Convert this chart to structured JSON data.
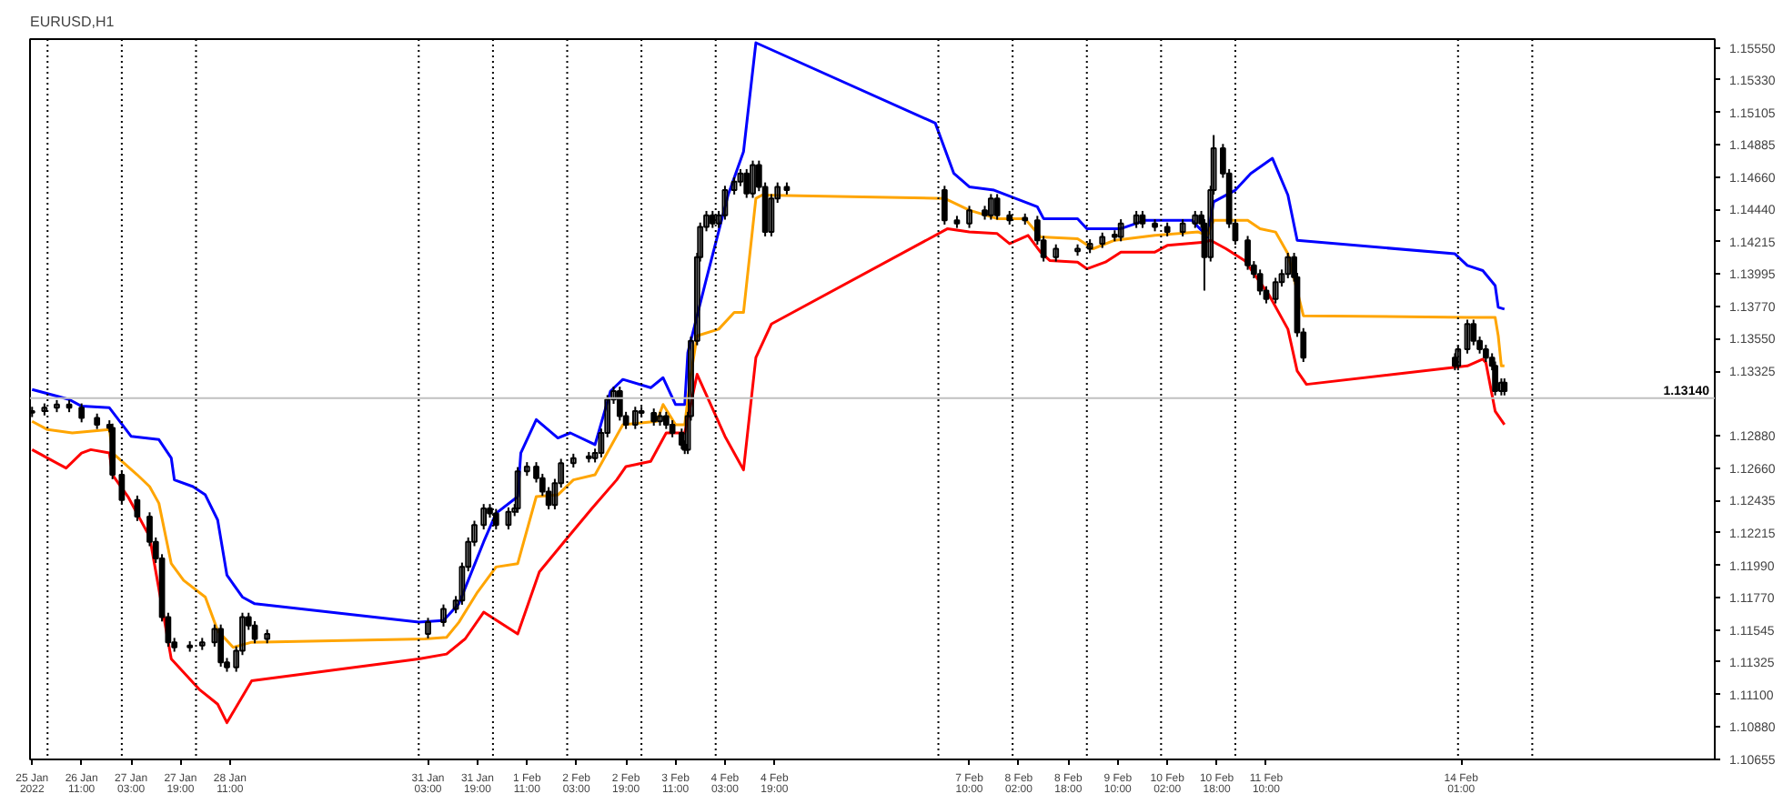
{
  "chart_data": {
    "type": "candlestick",
    "title": "EURUSD,H1",
    "color": "#000000",
    "x": [
      "2022-01-25T19:00",
      "2022-01-25T23:00",
      "2022-01-26T03:00",
      "2022-01-26T07:00",
      "2022-01-26T11:00",
      "2022-01-26T16:00",
      "2022-01-26T20:00",
      "2022-01-26T21:00",
      "2022-01-27T00:00",
      "2022-01-27T05:00",
      "2022-01-27T09:00",
      "2022-01-27T11:00",
      "2022-01-27T13:00",
      "2022-01-27T15:00",
      "2022-01-27T17:00",
      "2022-01-27T22:00",
      "2022-01-28T02:00",
      "2022-01-28T06:00",
      "2022-01-28T08:00",
      "2022-01-28T10:00",
      "2022-01-28T13:00",
      "2022-01-28T15:00",
      "2022-01-28T17:00",
      "2022-01-28T19:00",
      "2022-01-28T23:00",
      "2022-01-31T03:00",
      "2022-01-31T08:00",
      "2022-01-31T12:00",
      "2022-01-31T14:00",
      "2022-01-31T16:00",
      "2022-01-31T18:00",
      "2022-01-31T21:00",
      "2022-01-31T23:00",
      "2022-02-01T01:00",
      "2022-02-01T05:00",
      "2022-02-01T07:00",
      "2022-02-01T08:00",
      "2022-02-01T11:00",
      "2022-02-01T14:00",
      "2022-02-01T16:00",
      "2022-02-01T18:00",
      "2022-02-01T20:00",
      "2022-02-01T22:00",
      "2022-02-02T02:00",
      "2022-02-02T07:00",
      "2022-02-02T09:00",
      "2022-02-02T11:00",
      "2022-02-02T13:00",
      "2022-02-02T15:00",
      "2022-02-02T17:00",
      "2022-02-02T19:00",
      "2022-02-02T22:00",
      "2022-02-03T00:00",
      "2022-02-03T04:00",
      "2022-02-03T06:00",
      "2022-02-03T08:00",
      "2022-02-03T10:00",
      "2022-02-03T13:00",
      "2022-02-03T14:00",
      "2022-02-03T15:00",
      "2022-02-03T16:00",
      "2022-02-03T18:00",
      "2022-02-03T19:00",
      "2022-02-03T21:00",
      "2022-02-03T23:00",
      "2022-02-04T01:00",
      "2022-02-04T03:00",
      "2022-02-04T06:00",
      "2022-02-04T08:00",
      "2022-02-04T10:00",
      "2022-02-04T12:00",
      "2022-02-04T14:00",
      "2022-02-04T16:00",
      "2022-02-04T18:00",
      "2022-02-04T20:00",
      "2022-02-04T23:00",
      "2022-02-07T02:00",
      "2022-02-07T06:00",
      "2022-02-07T10:00",
      "2022-02-07T15:00",
      "2022-02-07T17:00",
      "2022-02-07T19:00",
      "2022-02-07T23:00",
      "2022-02-08T04:00",
      "2022-02-08T08:00",
      "2022-02-08T10:00",
      "2022-02-08T14:00",
      "2022-02-08T21:00",
      "2022-02-09T01:00",
      "2022-02-09T05:00",
      "2022-02-09T09:00",
      "2022-02-09T11:00",
      "2022-02-09T16:00",
      "2022-02-09T18:00",
      "2022-02-09T22:00",
      "2022-02-10T02:00",
      "2022-02-10T07:00",
      "2022-02-10T11:00",
      "2022-02-10T13:00",
      "2022-02-10T14:00",
      "2022-02-10T16:00",
      "2022-02-10T17:00",
      "2022-02-10T20:00",
      "2022-02-10T22:00",
      "2022-02-11T00:00",
      "2022-02-11T04:00",
      "2022-02-11T06:00",
      "2022-02-11T08:00",
      "2022-02-11T10:00",
      "2022-02-11T13:00",
      "2022-02-11T15:00",
      "2022-02-11T17:00",
      "2022-02-11T19:00",
      "2022-02-11T20:00",
      "2022-02-11T22:00",
      "2022-02-13T23:00",
      "2022-02-14T00:00",
      "2022-02-14T03:00",
      "2022-02-14T05:00",
      "2022-02-14T07:00",
      "2022-02-14T09:00",
      "2022-02-14T11:00",
      "2022-02-14T12:00",
      "2022-02-14T14:00",
      "2022-02-14T15:00"
    ],
    "ohlc": [
      [
        1.1304,
        1.13081,
        1.1301,
        1.13051
      ],
      [
        1.13051,
        1.13104,
        1.13021,
        1.13074
      ],
      [
        1.13074,
        1.13127,
        1.13044,
        1.13097
      ],
      [
        1.13097,
        1.13127,
        1.13044,
        1.13074
      ],
      [
        1.13074,
        1.13104,
        1.12974,
        1.13004
      ],
      [
        1.13004,
        1.13034,
        1.12928,
        1.12958
      ],
      [
        1.12958,
        1.12988,
        1.12905,
        1.12935
      ],
      [
        1.12935,
        1.12965,
        1.12583,
        1.12613
      ],
      [
        1.12613,
        1.12643,
        1.1241,
        1.1244
      ],
      [
        1.1244,
        1.1247,
        1.12295,
        1.12325
      ],
      [
        1.12325,
        1.12355,
        1.12122,
        1.12152
      ],
      [
        1.12152,
        1.12182,
        1.12007,
        1.12037
      ],
      [
        1.12037,
        1.12067,
        1.11604,
        1.11634
      ],
      [
        1.11634,
        1.11664,
        1.11431,
        1.11461
      ],
      [
        1.11461,
        1.11491,
        1.11396,
        1.11426
      ],
      [
        1.11426,
        1.11468,
        1.11396,
        1.11438
      ],
      [
        1.11438,
        1.11491,
        1.11408,
        1.11461
      ],
      [
        1.11461,
        1.11583,
        1.11431,
        1.11553
      ],
      [
        1.11553,
        1.11583,
        1.11293,
        1.11323
      ],
      [
        1.11323,
        1.11353,
        1.11258,
        1.11288
      ],
      [
        1.11288,
        1.11433,
        1.11258,
        1.11403
      ],
      [
        1.11403,
        1.11664,
        1.11373,
        1.11634
      ],
      [
        1.11634,
        1.11664,
        1.11546,
        1.11576
      ],
      [
        1.11576,
        1.11606,
        1.11454,
        1.11484
      ],
      [
        1.11484,
        1.11548,
        1.11454,
        1.11518
      ],
      [
        1.11518,
        1.11629,
        1.11488,
        1.11599
      ],
      [
        1.11599,
        1.11721,
        1.11569,
        1.11691
      ],
      [
        1.11691,
        1.11779,
        1.11661,
        1.11749
      ],
      [
        1.11749,
        1.12009,
        1.11719,
        1.11979
      ],
      [
        1.11979,
        1.12182,
        1.11949,
        1.12152
      ],
      [
        1.12152,
        1.12297,
        1.12122,
        1.12267
      ],
      [
        1.12267,
        1.12412,
        1.12237,
        1.12382
      ],
      [
        1.12382,
        1.12412,
        1.12318,
        1.12348
      ],
      [
        1.12348,
        1.12378,
        1.12237,
        1.12267
      ],
      [
        1.12267,
        1.12389,
        1.12237,
        1.12359
      ],
      [
        1.12359,
        1.12412,
        1.12329,
        1.12382
      ],
      [
        1.12382,
        1.12666,
        1.12352,
        1.12636
      ],
      [
        1.12636,
        1.127,
        1.12606,
        1.1267
      ],
      [
        1.1267,
        1.127,
        1.1256,
        1.1259
      ],
      [
        1.1259,
        1.1262,
        1.12468,
        1.12498
      ],
      [
        1.12498,
        1.12528,
        1.12375,
        1.12405
      ],
      [
        1.12405,
        1.12585,
        1.12375,
        1.12555
      ],
      [
        1.12555,
        1.12723,
        1.12525,
        1.12693
      ],
      [
        1.12693,
        1.12758,
        1.12663,
        1.12728
      ],
      [
        1.1274,
        1.1277,
        1.12698,
        1.12728
      ],
      [
        1.12728,
        1.12793,
        1.12698,
        1.12763
      ],
      [
        1.12763,
        1.12931,
        1.12733,
        1.12901
      ],
      [
        1.12901,
        1.13161,
        1.12871,
        1.13131
      ],
      [
        1.13131,
        1.13219,
        1.13101,
        1.13189
      ],
      [
        1.13189,
        1.13219,
        1.12986,
        1.13016
      ],
      [
        1.13016,
        1.13046,
        1.12928,
        1.12958
      ],
      [
        1.12958,
        1.13081,
        1.12928,
        1.13051
      ],
      [
        1.13051,
        1.13081,
        1.13009,
        1.13039
      ],
      [
        1.13039,
        1.13069,
        1.12951,
        1.12981
      ],
      [
        1.12981,
        1.13046,
        1.12951,
        1.13016
      ],
      [
        1.13016,
        1.13046,
        1.12928,
        1.12958
      ],
      [
        1.12958,
        1.12988,
        1.12871,
        1.12901
      ],
      [
        1.12901,
        1.12931,
        1.1279,
        1.1282
      ],
      [
        1.1282,
        1.1285,
        1.12756,
        1.12786
      ],
      [
        1.12786,
        1.13046,
        1.12756,
        1.13016
      ],
      [
        1.13016,
        1.13564,
        1.12986,
        1.13534
      ],
      [
        1.13534,
        1.1414,
        1.13504,
        1.1411
      ],
      [
        1.1411,
        1.14348,
        1.1408,
        1.14318
      ],
      [
        1.14318,
        1.14428,
        1.14288,
        1.14398
      ],
      [
        1.14398,
        1.14428,
        1.14311,
        1.14341
      ],
      [
        1.14341,
        1.14428,
        1.14311,
        1.14398
      ],
      [
        1.14398,
        1.14601,
        1.14368,
        1.14571
      ],
      [
        1.14571,
        1.14659,
        1.14541,
        1.14629
      ],
      [
        1.14629,
        1.14716,
        1.14599,
        1.14686
      ],
      [
        1.14686,
        1.14716,
        1.14518,
        1.14548
      ],
      [
        1.14548,
        1.14774,
        1.14518,
        1.14744
      ],
      [
        1.14744,
        1.14774,
        1.14564,
        1.14594
      ],
      [
        1.14594,
        1.14624,
        1.14253,
        1.14283
      ],
      [
        1.14283,
        1.14544,
        1.14253,
        1.14514
      ],
      [
        1.14514,
        1.14624,
        1.14484,
        1.14594
      ],
      [
        1.14594,
        1.14624,
        1.14541,
        1.14571
      ],
      [
        1.14571,
        1.14601,
        1.14334,
        1.14364
      ],
      [
        1.14364,
        1.14394,
        1.14311,
        1.14341
      ],
      [
        1.14341,
        1.14463,
        1.14311,
        1.14433
      ],
      [
        1.14433,
        1.14463,
        1.14368,
        1.14398
      ],
      [
        1.14398,
        1.14544,
        1.14368,
        1.14514
      ],
      [
        1.14514,
        1.14544,
        1.14368,
        1.14398
      ],
      [
        1.14398,
        1.14428,
        1.14334,
        1.14364
      ],
      [
        1.1438,
        1.1441,
        1.14334,
        1.14364
      ],
      [
        1.14364,
        1.14394,
        1.14196,
        1.14226
      ],
      [
        1.14226,
        1.14256,
        1.1408,
        1.1411
      ],
      [
        1.1411,
        1.14198,
        1.1408,
        1.14168
      ],
      [
        1.1415,
        1.14198,
        1.1412,
        1.14168
      ],
      [
        1.14168,
        1.14233,
        1.14138,
        1.14203
      ],
      [
        1.14203,
        1.14279,
        1.14173,
        1.14249
      ],
      [
        1.14265,
        1.14295,
        1.14219,
        1.14249
      ],
      [
        1.14249,
        1.14371,
        1.14219,
        1.14341
      ],
      [
        1.14341,
        1.14428,
        1.14311,
        1.14398
      ],
      [
        1.14398,
        1.14428,
        1.14311,
        1.14341
      ],
      [
        1.14341,
        1.14371,
        1.14288,
        1.14318
      ],
      [
        1.14318,
        1.14348,
        1.14253,
        1.14283
      ],
      [
        1.14283,
        1.14371,
        1.14253,
        1.14341
      ],
      [
        1.14341,
        1.14428,
        1.14311,
        1.14398
      ],
      [
        1.14398,
        1.14428,
        1.14311,
        1.14341
      ],
      [
        1.14341,
        1.14371,
        1.1388,
        1.1411
      ],
      [
        1.1411,
        1.14601,
        1.1408,
        1.14571
      ],
      [
        1.14571,
        1.1495,
        1.14541,
        1.14859
      ],
      [
        1.14859,
        1.14889,
        1.14656,
        1.14686
      ],
      [
        1.14686,
        1.14716,
        1.14311,
        1.14341
      ],
      [
        1.14341,
        1.14371,
        1.14196,
        1.14226
      ],
      [
        1.14226,
        1.14256,
        1.14023,
        1.14053
      ],
      [
        1.14053,
        1.14083,
        1.13965,
        1.13995
      ],
      [
        1.13995,
        1.14025,
        1.1385,
        1.1388
      ],
      [
        1.1388,
        1.1391,
        1.13792,
        1.13822
      ],
      [
        1.13822,
        1.13968,
        1.13792,
        1.13938
      ],
      [
        1.13938,
        1.14025,
        1.13908,
        1.13995
      ],
      [
        1.13995,
        1.1414,
        1.13965,
        1.1411
      ],
      [
        1.1411,
        1.1414,
        1.13942,
        1.13972
      ],
      [
        1.13972,
        1.14002,
        1.13562,
        1.13592
      ],
      [
        1.13592,
        1.13622,
        1.13389,
        1.13419
      ],
      [
        1.13419,
        1.13449,
        1.13332,
        1.13362
      ],
      [
        1.13362,
        1.13507,
        1.13332,
        1.13477
      ],
      [
        1.13477,
        1.1368,
        1.13447,
        1.1365
      ],
      [
        1.1365,
        1.1368,
        1.13504,
        1.13534
      ],
      [
        1.13534,
        1.13564,
        1.13447,
        1.13477
      ],
      [
        1.13477,
        1.13507,
        1.13389,
        1.13419
      ],
      [
        1.13419,
        1.13449,
        1.13332,
        1.13362
      ],
      [
        1.13362,
        1.13392,
        1.13159,
        1.13189
      ],
      [
        1.13189,
        1.13276,
        1.13159,
        1.13246
      ],
      [
        1.13246,
        1.13276,
        1.13159,
        1.13189
      ]
    ],
    "series": [
      {
        "type": "line",
        "color": "#0000ff",
        "x": [
          "2022-01-25T19:00",
          "2022-01-26T03:00",
          "2022-01-26T07:00",
          "2022-01-26T11:00",
          "2022-01-26T20:00",
          "2022-01-27T03:00",
          "2022-01-27T12:00",
          "2022-01-27T16:00",
          "2022-01-27T17:00",
          "2022-01-27T23:00",
          "2022-01-28T03:00",
          "2022-01-28T07:00",
          "2022-01-28T10:00",
          "2022-01-28T15:00",
          "2022-01-28T19:00",
          "2022-01-31T00:00",
          "2022-01-31T08:00",
          "2022-01-31T13:00",
          "2022-01-31T16:00",
          "2022-01-31T21:00",
          "2022-02-01T01:00",
          "2022-02-01T08:00",
          "2022-02-01T09:00",
          "2022-02-01T14:00",
          "2022-02-01T21:00",
          "2022-02-02T01:00",
          "2022-02-02T09:00",
          "2022-02-02T14:00",
          "2022-02-02T18:00",
          "2022-02-03T03:00",
          "2022-02-03T07:00",
          "2022-02-03T11:00",
          "2022-02-03T14:00",
          "2022-02-03T15:00",
          "2022-02-03T21:00",
          "2022-02-04T04:00",
          "2022-02-04T09:00",
          "2022-02-04T13:00",
          "2022-02-06T23:00",
          "2022-02-07T05:00",
          "2022-02-07T10:00",
          "2022-02-07T18:00",
          "2022-02-08T08:00",
          "2022-02-08T10:00",
          "2022-02-08T21:00",
          "2022-02-09T00:00",
          "2022-02-09T11:00",
          "2022-02-09T19:00",
          "2022-02-10T10:00",
          "2022-02-10T15:00",
          "2022-02-10T17:00",
          "2022-02-11T00:00",
          "2022-02-11T05:00",
          "2022-02-11T12:00",
          "2022-02-11T17:00",
          "2022-02-11T20:00",
          "2022-02-13T23:00",
          "2022-02-14T03:00",
          "2022-02-14T08:00",
          "2022-02-14T12:00",
          "2022-02-14T13:00",
          "2022-02-14T15:00"
        ],
        "values": [
          1.132,
          1.13154,
          1.13131,
          1.13085,
          1.13074,
          1.12878,
          1.12855,
          1.12728,
          1.12578,
          1.12532,
          1.12475,
          1.12302,
          1.11922,
          1.11772,
          1.11726,
          1.11599,
          1.11611,
          1.11726,
          1.11887,
          1.12152,
          1.12348,
          1.12463,
          1.12763,
          1.12993,
          1.12866,
          1.12901,
          1.1282,
          1.13189,
          1.13269,
          1.13212,
          1.13281,
          1.13097,
          1.13097,
          1.13454,
          1.13961,
          1.14537,
          1.14836,
          1.15585,
          1.15032,
          1.14686,
          1.14594,
          1.14571,
          1.14456,
          1.14375,
          1.14375,
          1.14306,
          1.14306,
          1.14364,
          1.14364,
          1.14249,
          1.14491,
          1.14571,
          1.14686,
          1.1479,
          1.14537,
          1.14226,
          1.14133,
          1.14053,
          1.14018,
          1.13915,
          1.13765,
          1.13753
        ]
      },
      {
        "type": "line",
        "color": "#ffa500",
        "x": [
          "2022-01-25T19:00",
          "2022-01-26T00:00",
          "2022-01-26T08:00",
          "2022-01-26T20:00",
          "2022-01-26T21:00",
          "2022-01-27T05:00",
          "2022-01-27T09:00",
          "2022-01-27T12:00",
          "2022-01-27T16:00",
          "2022-01-27T20:00",
          "2022-01-28T03:00",
          "2022-01-28T07:00",
          "2022-01-28T12:00",
          "2022-01-28T18:00",
          "2022-01-31T02:00",
          "2022-01-31T09:00",
          "2022-01-31T13:00",
          "2022-01-31T19:00",
          "2022-02-01T01:00",
          "2022-02-01T08:00",
          "2022-02-01T14:00",
          "2022-02-01T21:00",
          "2022-02-02T02:00",
          "2022-02-02T09:00",
          "2022-02-02T15:00",
          "2022-02-02T18:00",
          "2022-02-03T05:00",
          "2022-02-03T07:00",
          "2022-02-03T11:00",
          "2022-02-03T14:00",
          "2022-02-03T16:00",
          "2022-02-03T18:00",
          "2022-02-04T01:00",
          "2022-02-04T06:00",
          "2022-02-04T09:00",
          "2022-02-04T13:00",
          "2022-02-04T15:00",
          "2022-02-07T02:00",
          "2022-02-07T10:00",
          "2022-02-07T19:00",
          "2022-02-08T04:00",
          "2022-02-08T09:00",
          "2022-02-08T21:00",
          "2022-02-09T02:00",
          "2022-02-09T09:00",
          "2022-02-09T22:00",
          "2022-02-10T12:00",
          "2022-02-10T15:00",
          "2022-02-10T17:00",
          "2022-02-11T04:00",
          "2022-02-11T08:00",
          "2022-02-11T13:00",
          "2022-02-11T17:00",
          "2022-02-11T22:00",
          "2022-02-14T03:00",
          "2022-02-14T12:00",
          "2022-02-14T13:00",
          "2022-02-14T14:00",
          "2022-02-14T15:00"
        ],
        "values": [
          1.12981,
          1.12924,
          1.12901,
          1.12924,
          1.12763,
          1.12613,
          1.12532,
          1.12417,
          1.12002,
          1.11887,
          1.11772,
          1.11541,
          1.11426,
          1.11461,
          1.11484,
          1.11495,
          1.11599,
          1.11806,
          1.11979,
          1.12002,
          1.12463,
          1.12475,
          1.12578,
          1.12613,
          1.12843,
          1.12958,
          1.12981,
          1.13097,
          1.12958,
          1.12958,
          1.13304,
          1.13569,
          1.13615,
          1.1373,
          1.1373,
          1.14514,
          1.14537,
          1.14514,
          1.14433,
          1.14375,
          1.14375,
          1.14249,
          1.14237,
          1.14168,
          1.14226,
          1.1426,
          1.14283,
          1.1426,
          1.14364,
          1.14364,
          1.14306,
          1.14283,
          1.14133,
          1.13707,
          1.13696,
          1.13696,
          1.13569,
          1.13362,
          1.13362
        ]
      },
      {
        "type": "line",
        "color": "#ff0000",
        "x": [
          "2022-01-25T19:00",
          "2022-01-26T00:00",
          "2022-01-26T06:00",
          "2022-01-26T11:00",
          "2022-01-26T14:00",
          "2022-01-26T20:00",
          "2022-01-26T21:00",
          "2022-01-27T02:00",
          "2022-01-27T09:00",
          "2022-01-27T16:00",
          "2022-01-28T01:00",
          "2022-01-28T07:00",
          "2022-01-28T10:00",
          "2022-01-28T18:00",
          "2022-01-31T00:00",
          "2022-01-31T09:00",
          "2022-01-31T15:00",
          "2022-01-31T21:00",
          "2022-02-01T08:00",
          "2022-02-01T15:00",
          "2022-02-01T23:00",
          "2022-02-02T08:00",
          "2022-02-02T16:00",
          "2022-02-02T19:00",
          "2022-02-03T03:00",
          "2022-02-03T08:00",
          "2022-02-03T14:00",
          "2022-02-03T18:00",
          "2022-02-04T03:00",
          "2022-02-04T09:00",
          "2022-02-04T13:00",
          "2022-02-04T18:00",
          "2022-02-07T03:00",
          "2022-02-07T10:00",
          "2022-02-07T19:00",
          "2022-02-07T23:00",
          "2022-02-08T05:00",
          "2022-02-08T09:00",
          "2022-02-08T12:00",
          "2022-02-08T21:00",
          "2022-02-09T00:00",
          "2022-02-09T06:00",
          "2022-02-09T11:00",
          "2022-02-09T22:00",
          "2022-02-10T02:00",
          "2022-02-10T14:00",
          "2022-02-10T16:00",
          "2022-02-10T21:00",
          "2022-02-11T03:00",
          "2022-02-11T11:00",
          "2022-02-11T17:00",
          "2022-02-11T20:00",
          "2022-02-11T23:00",
          "2022-02-14T03:00",
          "2022-02-14T08:00",
          "2022-02-14T09:00",
          "2022-02-14T12:00",
          "2022-02-14T15:00"
        ],
        "values": [
          1.12786,
          1.12728,
          1.12659,
          1.12763,
          1.12786,
          1.12763,
          1.12613,
          1.12463,
          1.12187,
          1.11346,
          1.11138,
          1.11035,
          1.10908,
          1.11196,
          1.11346,
          1.1138,
          1.11484,
          1.11668,
          1.11518,
          1.11945,
          1.12152,
          1.12382,
          1.12578,
          1.1267,
          1.12705,
          1.12901,
          1.12901,
          1.13304,
          1.12878,
          1.12647,
          1.13419,
          1.1365,
          1.14306,
          1.14283,
          1.14272,
          1.14203,
          1.1426,
          1.14145,
          1.14087,
          1.14076,
          1.1403,
          1.14076,
          1.14145,
          1.14145,
          1.14191,
          1.14214,
          1.14226,
          1.14168,
          1.14087,
          1.13846,
          1.13615,
          1.13327,
          1.13235,
          1.13362,
          1.13408,
          1.13385,
          1.13051,
          1.12958
        ]
      }
    ],
    "xlim": [
      "2022-01-25T18:20",
      "2022-02-17T11:00"
    ],
    "xticks": [
      {
        "value": "2022-01-25T19:00",
        "label": "25 Jan 2022"
      },
      {
        "value": "2022-01-26T11:00",
        "label": "26 Jan 11:00"
      },
      {
        "value": "2022-01-27T03:00",
        "label": "27 Jan 03:00"
      },
      {
        "value": "2022-01-27T19:00",
        "label": "27 Jan 19:00"
      },
      {
        "value": "2022-01-28T11:00",
        "label": "28 Jan 11:00"
      },
      {
        "value": "2022-01-31T03:00",
        "label": "31 Jan 03:00"
      },
      {
        "value": "2022-01-31T19:00",
        "label": "31 Jan 19:00"
      },
      {
        "value": "2022-02-01T11:00",
        "label": "1 Feb 11:00"
      },
      {
        "value": "2022-02-02T03:00",
        "label": "2 Feb 03:00"
      },
      {
        "value": "2022-02-02T19:00",
        "label": "2 Feb 19:00"
      },
      {
        "value": "2022-02-03T11:00",
        "label": "3 Feb 11:00"
      },
      {
        "value": "2022-02-04T03:00",
        "label": "4 Feb 03:00"
      },
      {
        "value": "2022-02-04T19:00",
        "label": "4 Feb 19:00"
      },
      {
        "value": "2022-02-07T10:00",
        "label": "7 Feb 10:00"
      },
      {
        "value": "2022-02-08T02:00",
        "label": "8 Feb 02:00"
      },
      {
        "value": "2022-02-08T18:00",
        "label": "8 Feb 18:00"
      },
      {
        "value": "2022-02-09T10:00",
        "label": "9 Feb 10:00"
      },
      {
        "value": "2022-02-10T02:00",
        "label": "10 Feb 02:00"
      },
      {
        "value": "2022-02-10T18:00",
        "label": "10 Feb 18:00"
      },
      {
        "value": "2022-02-11T10:00",
        "label": "11 Feb 10:00"
      },
      {
        "value": "2022-02-14T01:00",
        "label": "14 Feb 01:00"
      }
    ],
    "ylim": [
      1.10655,
      1.1561
    ],
    "yticks": [
      {
        "value": 1.1555,
        "label": "1.15550"
      },
      {
        "value": 1.1533,
        "label": "1.15330"
      },
      {
        "value": 1.15105,
        "label": "1.15105"
      },
      {
        "value": 1.14885,
        "label": "1.14885"
      },
      {
        "value": 1.1466,
        "label": "1.14660"
      },
      {
        "value": 1.1444,
        "label": "1.14440"
      },
      {
        "value": 1.14215,
        "label": "1.14215"
      },
      {
        "value": 1.13995,
        "label": "1.13995"
      },
      {
        "value": 1.1377,
        "label": "1.13770"
      },
      {
        "value": 1.1355,
        "label": "1.13550"
      },
      {
        "value": 1.13325,
        "label": "1.13325"
      },
      {
        "value": 1.1288,
        "label": "1.12880"
      },
      {
        "value": 1.1266,
        "label": "1.12660"
      },
      {
        "value": 1.12435,
        "label": "1.12435"
      },
      {
        "value": 1.12215,
        "label": "1.12215"
      },
      {
        "value": 1.1199,
        "label": "1.11990"
      },
      {
        "value": 1.1177,
        "label": "1.11770"
      },
      {
        "value": 1.11545,
        "label": "1.11545"
      },
      {
        "value": 1.11325,
        "label": "1.11325"
      },
      {
        "value": 1.111,
        "label": "1.11100"
      },
      {
        "value": 1.1088,
        "label": "1.10880"
      },
      {
        "value": 1.10655,
        "label": "1.10655"
      }
    ],
    "grid": false,
    "ref_lines": [
      {
        "axis": "y",
        "value": 1.1314,
        "label": "1.13140",
        "color": "#c0c0c0",
        "line_style": "solid"
      },
      {
        "axis": "x",
        "value": "2022-01-26T00:00",
        "label": null,
        "color": "#000000",
        "line_style": "dotted"
      },
      {
        "axis": "x",
        "value": "2022-01-27T00:00",
        "label": null,
        "color": "#000000",
        "line_style": "dotted"
      },
      {
        "axis": "x",
        "value": "2022-01-28T00:00",
        "label": null,
        "color": "#000000",
        "line_style": "dotted"
      },
      {
        "axis": "x",
        "value": "2022-01-31T00:00",
        "label": null,
        "color": "#000000",
        "line_style": "dotted"
      },
      {
        "axis": "x",
        "value": "2022-02-01T00:00",
        "label": null,
        "color": "#000000",
        "line_style": "dotted"
      },
      {
        "axis": "x",
        "value": "2022-02-02T00:00",
        "label": null,
        "color": "#000000",
        "line_style": "dotted"
      },
      {
        "axis": "x",
        "value": "2022-02-03T00:00",
        "label": null,
        "color": "#000000",
        "line_style": "dotted"
      },
      {
        "axis": "x",
        "value": "2022-02-04T00:00",
        "label": null,
        "color": "#000000",
        "line_style": "dotted"
      },
      {
        "axis": "x",
        "value": "2022-02-07T00:00",
        "label": null,
        "color": "#000000",
        "line_style": "dotted"
      },
      {
        "axis": "x",
        "value": "2022-02-08T00:00",
        "label": null,
        "color": "#000000",
        "line_style": "dotted"
      },
      {
        "axis": "x",
        "value": "2022-02-09T00:00",
        "label": null,
        "color": "#000000",
        "line_style": "dotted"
      },
      {
        "axis": "x",
        "value": "2022-02-10T00:00",
        "label": null,
        "color": "#000000",
        "line_style": "dotted"
      },
      {
        "axis": "x",
        "value": "2022-02-11T00:00",
        "label": null,
        "color": "#000000",
        "line_style": "dotted"
      },
      {
        "axis": "x",
        "value": "2022-02-14T00:00",
        "label": null,
        "color": "#000000",
        "line_style": "dotted"
      },
      {
        "axis": "x",
        "value": "2022-02-15T00:00",
        "label": null,
        "color": "#000000",
        "line_style": "dotted"
      }
    ]
  }
}
